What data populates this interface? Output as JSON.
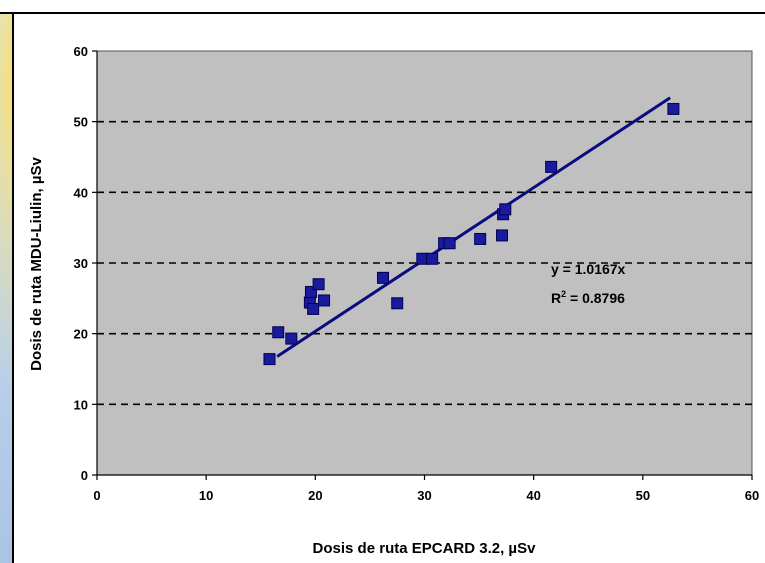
{
  "chart_data": {
    "type": "scatter",
    "title": "",
    "xlabel": "Dosis de ruta EPCARD 3.2, µSv",
    "ylabel": "Dosis de ruta MDU-Liulin, µSv",
    "xlim": [
      0,
      60
    ],
    "ylim": [
      0,
      60
    ],
    "xticks": [
      "0",
      "10",
      "20",
      "30",
      "40",
      "50",
      "60"
    ],
    "yticks": [
      "0",
      "10",
      "20",
      "30",
      "40",
      "50",
      "60"
    ],
    "grid": "horizontal dashed",
    "plot_background": "#c0c0c0",
    "marker_color": "#1a1a9c",
    "trendline_color": "#0b0b80",
    "trendline": {
      "slope": 1.0167,
      "x_range": [
        16.5,
        52.5
      ]
    },
    "equation_label": "y = 1.0167x",
    "r2_prefix": "R",
    "r2_sup": "2",
    "r2_value": " = 0.8796",
    "points": [
      [
        15.8,
        16.4
      ],
      [
        16.6,
        20.2
      ],
      [
        17.8,
        19.3
      ],
      [
        19.5,
        24.4
      ],
      [
        19.6,
        25.9
      ],
      [
        19.8,
        23.5
      ],
      [
        20.3,
        27.0
      ],
      [
        20.8,
        24.7
      ],
      [
        26.2,
        27.9
      ],
      [
        27.5,
        24.3
      ],
      [
        29.8,
        30.6
      ],
      [
        30.7,
        30.6
      ],
      [
        31.8,
        32.8
      ],
      [
        32.3,
        32.8
      ],
      [
        35.1,
        33.4
      ],
      [
        37.1,
        33.9
      ],
      [
        37.2,
        36.9
      ],
      [
        37.4,
        37.6
      ],
      [
        41.6,
        43.6
      ],
      [
        52.8,
        51.8
      ]
    ]
  }
}
